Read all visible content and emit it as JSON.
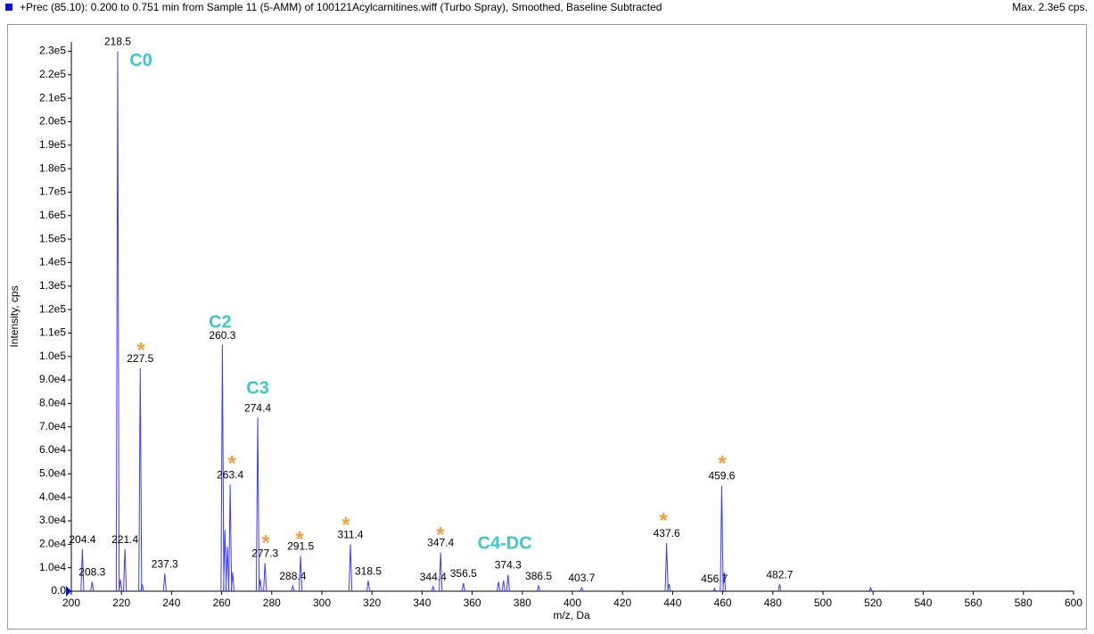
{
  "header": {
    "title": "+Prec (85.10): 0.200 to 0.751 min from Sample 11 (5-AMM) of 100121Acylcarnitines.wiff (Turbo Spray), Smoothed, Baseline Subtracted",
    "max": "Max. 2.3e5 cps."
  },
  "chart_data": {
    "type": "spectrum",
    "color": "#3b3bff",
    "x_label": "m/z, Da",
    "y_label": "Intensity, cps",
    "x": [
      204.4,
      208.3,
      218.5,
      221.4,
      227.5,
      237.3,
      260.3,
      263.4,
      274.4,
      277.3,
      288.4,
      291.5,
      311.4,
      318.5,
      344.4,
      347.4,
      356.5,
      374.3,
      386.5,
      403.7,
      437.6,
      456.7,
      459.6,
      482.7
    ],
    "values": [
      18000,
      4000,
      230000,
      18000,
      95000,
      7500,
      105000,
      45500,
      74000,
      12000,
      2300,
      15000,
      20000,
      4500,
      2000,
      16500,
      3500,
      7000,
      2300,
      1500,
      20500,
      1200,
      45000,
      3000
    ],
    "minor_peaks": {
      "x": [
        219.6,
        228.3,
        261.3,
        262.3,
        264.4,
        275.4,
        370.5,
        372.5,
        438.6,
        460.6,
        519.0
      ],
      "values": [
        5000,
        3000,
        26000,
        19000,
        8000,
        5000,
        4000,
        4500,
        3000,
        8000,
        1500
      ]
    },
    "annotations": [
      {
        "text": "C0",
        "x": 227.8,
        "y": 225800
      },
      {
        "text": "C2",
        "x": 259.4,
        "y": 114200
      },
      {
        "text": "C3",
        "x": 274.4,
        "y": 86100
      },
      {
        "text": "C4-DC",
        "x": 373.0,
        "y": 20100
      },
      {
        "text": "*",
        "x": 227.8,
        "y": 104400
      },
      {
        "text": "*",
        "x": 264.1,
        "y": 56200
      },
      {
        "text": "*",
        "x": 277.6,
        "y": 22400
      },
      {
        "text": "*",
        "x": 291.1,
        "y": 23900
      },
      {
        "text": "*",
        "x": 309.6,
        "y": 30000
      },
      {
        "text": "*",
        "x": 347.3,
        "y": 25800
      },
      {
        "text": "*",
        "x": 436.3,
        "y": 31900
      },
      {
        "text": "*",
        "x": 459.8,
        "y": 56200
      }
    ],
    "xlim": [
      200,
      600
    ],
    "ylim": [
      0,
      234000
    ],
    "xticks": [
      200,
      220,
      240,
      260,
      280,
      300,
      320,
      340,
      360,
      380,
      400,
      420,
      440,
      460,
      480,
      500,
      520,
      540,
      560,
      580,
      600
    ],
    "yticks": [
      {
        "value": 0,
        "label": "0.0"
      },
      {
        "value": 10000,
        "label": "1.0e4"
      },
      {
        "value": 20000,
        "label": "2.0e4"
      },
      {
        "value": 30000,
        "label": "3.0e4"
      },
      {
        "value": 40000,
        "label": "4.0e4"
      },
      {
        "value": 50000,
        "label": "5.0e4"
      },
      {
        "value": 60000,
        "label": "6.0e4"
      },
      {
        "value": 70000,
        "label": "7.0e4"
      },
      {
        "value": 80000,
        "label": "8.0e4"
      },
      {
        "value": 90000,
        "label": "9.0e4"
      },
      {
        "value": 100000,
        "label": "1.0e5"
      },
      {
        "value": 110000,
        "label": "1.1e5"
      },
      {
        "value": 120000,
        "label": "1.2e5"
      },
      {
        "value": 130000,
        "label": "1.3e5"
      },
      {
        "value": 140000,
        "label": "1.4e5"
      },
      {
        "value": 150000,
        "label": "1.5e5"
      },
      {
        "value": 160000,
        "label": "1.6e5"
      },
      {
        "value": 170000,
        "label": "1.7e5"
      },
      {
        "value": 180000,
        "label": "1.8e5"
      },
      {
        "value": 190000,
        "label": "1.9e5"
      },
      {
        "value": 200000,
        "label": "2.0e5"
      },
      {
        "value": 210000,
        "label": "2.1e5"
      },
      {
        "value": 220000,
        "label": "2.2e5"
      },
      {
        "value": 230000,
        "label": "2.3e5"
      }
    ]
  }
}
